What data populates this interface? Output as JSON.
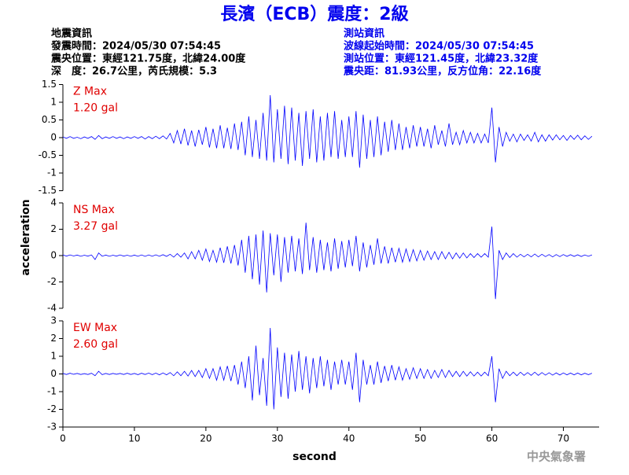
{
  "header": {
    "title": "長濱（ECB）震度：2級",
    "left_lines": [
      "地震資訊",
      "發震時間：2024/05/30 07:54:45",
      "震央位置：東經121.75度，北緯24.00度",
      "深　度：26.7公里，芮氏規模：5.3"
    ],
    "right_lines": [
      "測站資訊",
      "波線起始時間：2024/05/30 07:54:45",
      "測站位置：東經121.45度，北緯23.32度",
      "震央距：81.93公里，反方位角：22.16度"
    ],
    "footer": "中央氣象署"
  },
  "chart_data": [
    {
      "type": "line",
      "annotation": [
        "Z Max",
        "1.20 gal"
      ],
      "color": "#0000ff",
      "annotation_color": "#e00000",
      "xlim": [
        0,
        75
      ],
      "ylim": [
        -1.5,
        1.5
      ],
      "yticks": [
        -1.5,
        -1,
        -0.5,
        0,
        0.5,
        1,
        1.5
      ],
      "x": [
        0,
        0.5,
        1,
        1.5,
        2,
        2.5,
        3,
        3.5,
        4,
        4.5,
        5,
        5.5,
        6,
        6.5,
        7,
        7.5,
        8,
        8.5,
        9,
        9.5,
        10,
        10.5,
        11,
        11.5,
        12,
        12.5,
        13,
        13.5,
        14,
        14.5,
        15,
        15.5,
        16,
        16.5,
        17,
        17.5,
        18,
        18.5,
        19,
        19.5,
        20,
        20.5,
        21,
        21.5,
        22,
        22.5,
        23,
        23.5,
        24,
        24.5,
        25,
        25.5,
        26,
        26.5,
        27,
        27.5,
        28,
        28.5,
        29,
        29.5,
        30,
        30.5,
        31,
        31.5,
        32,
        32.5,
        33,
        33.5,
        34,
        34.5,
        35,
        35.5,
        36,
        36.5,
        37,
        37.5,
        38,
        38.5,
        39,
        39.5,
        40,
        40.5,
        41,
        41.5,
        42,
        42.5,
        43,
        43.5,
        44,
        44.5,
        45,
        45.5,
        46,
        46.5,
        47,
        47.5,
        48,
        48.5,
        49,
        49.5,
        50,
        50.5,
        51,
        51.5,
        52,
        52.5,
        53,
        53.5,
        54,
        54.5,
        55,
        55.5,
        56,
        56.5,
        57,
        57.5,
        58,
        58.5,
        59,
        59.5,
        60,
        60.5,
        61,
        61.5,
        62,
        62.5,
        63,
        63.5,
        64,
        64.5,
        65,
        65.5,
        66,
        66.5,
        67,
        67.5,
        68,
        68.5,
        69,
        69.5,
        70,
        70.5,
        71,
        71.5,
        72,
        72.5,
        73,
        73.5,
        74
      ],
      "values": [
        0.02,
        -0.02,
        0.03,
        -0.02,
        0.01,
        -0.03,
        0.02,
        -0.02,
        0.03,
        -0.05,
        0.06,
        -0.03,
        0.02,
        -0.02,
        0.03,
        -0.02,
        0.02,
        -0.03,
        0.02,
        -0.02,
        0.03,
        -0.02,
        0.03,
        -0.04,
        0.03,
        -0.03,
        0.04,
        -0.03,
        0.05,
        -0.04,
        0.12,
        -0.15,
        0.2,
        -0.18,
        0.25,
        -0.22,
        0.2,
        -0.25,
        0.22,
        -0.2,
        0.3,
        -0.28,
        0.25,
        -0.3,
        0.35,
        -0.3,
        0.28,
        -0.32,
        0.4,
        -0.35,
        0.45,
        -0.5,
        0.6,
        -0.55,
        0.5,
        -0.6,
        0.7,
        -0.65,
        1.2,
        -0.7,
        0.8,
        -0.6,
        0.9,
        -0.75,
        0.85,
        -0.65,
        0.7,
        -0.8,
        0.75,
        -0.6,
        0.8,
        -0.7,
        0.6,
        -0.65,
        0.7,
        -0.55,
        0.75,
        -0.6,
        0.5,
        -0.55,
        0.6,
        -0.55,
        0.75,
        -0.85,
        0.65,
        -0.6,
        0.5,
        -0.55,
        0.6,
        -0.5,
        0.45,
        -0.4,
        0.5,
        -0.35,
        0.4,
        -0.35,
        0.3,
        -0.3,
        0.35,
        -0.25,
        0.3,
        -0.25,
        0.25,
        -0.3,
        0.35,
        -0.2,
        0.2,
        -0.25,
        0.4,
        -0.2,
        0.15,
        -0.2,
        0.2,
        -0.15,
        0.15,
        -0.15,
        0.12,
        -0.15,
        0.1,
        -0.15,
        0.85,
        -0.7,
        0.3,
        -0.25,
        0.15,
        -0.1,
        0.1,
        -0.12,
        0.1,
        -0.08,
        0.08,
        -0.1,
        0.15,
        -0.12,
        0.08,
        -0.1,
        0.08,
        -0.07,
        0.08,
        -0.06,
        0.06,
        -0.08,
        0.06,
        -0.05,
        0.07,
        -0.06,
        0.05,
        -0.05,
        0.04
      ]
    },
    {
      "type": "line",
      "annotation": [
        "NS Max",
        "3.27 gal"
      ],
      "color": "#0000ff",
      "annotation_color": "#e00000",
      "ylabel": "acceleration",
      "xlim": [
        0,
        75
      ],
      "ylim": [
        -4,
        4
      ],
      "yticks": [
        -4,
        -2,
        0,
        2,
        4
      ],
      "x": [
        0,
        0.5,
        1,
        1.5,
        2,
        2.5,
        3,
        3.5,
        4,
        4.5,
        5,
        5.5,
        6,
        6.5,
        7,
        7.5,
        8,
        8.5,
        9,
        9.5,
        10,
        10.5,
        11,
        11.5,
        12,
        12.5,
        13,
        13.5,
        14,
        14.5,
        15,
        15.5,
        16,
        16.5,
        17,
        17.5,
        18,
        18.5,
        19,
        19.5,
        20,
        20.5,
        21,
        21.5,
        22,
        22.5,
        23,
        23.5,
        24,
        24.5,
        25,
        25.5,
        26,
        26.5,
        27,
        27.5,
        28,
        28.5,
        29,
        29.5,
        30,
        30.5,
        31,
        31.5,
        32,
        32.5,
        33,
        33.5,
        34,
        34.5,
        35,
        35.5,
        36,
        36.5,
        37,
        37.5,
        38,
        38.5,
        39,
        39.5,
        40,
        40.5,
        41,
        41.5,
        42,
        42.5,
        43,
        43.5,
        44,
        44.5,
        45,
        45.5,
        46,
        46.5,
        47,
        47.5,
        48,
        48.5,
        49,
        49.5,
        50,
        50.5,
        51,
        51.5,
        52,
        52.5,
        53,
        53.5,
        54,
        54.5,
        55,
        55.5,
        56,
        56.5,
        57,
        57.5,
        58,
        58.5,
        59,
        59.5,
        60,
        60.5,
        61,
        61.5,
        62,
        62.5,
        63,
        63.5,
        64,
        64.5,
        65,
        65.5,
        66,
        66.5,
        67,
        67.5,
        68,
        68.5,
        69,
        69.5,
        70,
        70.5,
        71,
        71.5,
        72,
        72.5,
        73,
        73.5,
        74
      ],
      "values": [
        0.05,
        -0.04,
        0.05,
        -0.03,
        0.04,
        -0.05,
        0.03,
        -0.04,
        0.05,
        -0.3,
        0.2,
        -0.05,
        0.04,
        -0.05,
        0.03,
        -0.04,
        0.05,
        -0.04,
        0.03,
        -0.05,
        0.04,
        -0.05,
        0.05,
        -0.06,
        0.05,
        -0.05,
        0.06,
        -0.05,
        0.07,
        -0.06,
        0.1,
        -0.12,
        0.15,
        -0.12,
        0.2,
        -0.25,
        0.3,
        -0.25,
        0.4,
        -0.35,
        0.5,
        -0.45,
        0.4,
        -0.5,
        0.6,
        -0.55,
        0.7,
        -0.6,
        0.8,
        -0.75,
        1.2,
        -1.3,
        1.5,
        -1.8,
        1.6,
        -2.2,
        1.9,
        -2.8,
        1.7,
        -1.5,
        1.6,
        -2.0,
        1.4,
        -1.3,
        1.5,
        -1.2,
        1.3,
        -1.4,
        2.5,
        -1.1,
        1.4,
        -1.3,
        1.2,
        -1.1,
        1.0,
        -1.2,
        1.3,
        -1.0,
        1.1,
        -0.9,
        1.2,
        -0.8,
        1.5,
        -1.2,
        1.0,
        -0.9,
        0.8,
        -0.7,
        1.3,
        -0.6,
        0.7,
        -0.6,
        0.6,
        -0.5,
        0.55,
        -0.5,
        0.5,
        -0.45,
        0.45,
        -0.4,
        0.4,
        -0.35,
        0.35,
        -0.3,
        0.3,
        -0.3,
        0.3,
        -0.25,
        0.25,
        -0.25,
        0.2,
        -0.2,
        0.2,
        -0.18,
        0.15,
        -0.15,
        0.15,
        -0.12,
        0.15,
        -0.12,
        2.2,
        -3.3,
        0.4,
        -0.3,
        0.2,
        -0.15,
        0.15,
        -0.12,
        0.1,
        -0.1,
        0.1,
        -0.1,
        0.12,
        -0.1,
        0.1,
        -0.08,
        0.08,
        -0.1,
        0.08,
        -0.08,
        0.08,
        -0.06,
        0.07,
        -0.06,
        0.06,
        -0.07,
        0.05,
        -0.05,
        0.05
      ]
    },
    {
      "type": "line",
      "annotation": [
        "EW Max",
        "2.60 gal"
      ],
      "color": "#0000ff",
      "annotation_color": "#e00000",
      "xlabel": "second",
      "xlim": [
        0,
        75
      ],
      "xticks": [
        0,
        10,
        20,
        30,
        40,
        50,
        60,
        70
      ],
      "ylim": [
        -3,
        3
      ],
      "yticks": [
        -3,
        -2,
        -1,
        0,
        1,
        2,
        3
      ],
      "x": [
        0,
        0.5,
        1,
        1.5,
        2,
        2.5,
        3,
        3.5,
        4,
        4.5,
        5,
        5.5,
        6,
        6.5,
        7,
        7.5,
        8,
        8.5,
        9,
        9.5,
        10,
        10.5,
        11,
        11.5,
        12,
        12.5,
        13,
        13.5,
        14,
        14.5,
        15,
        15.5,
        16,
        16.5,
        17,
        17.5,
        18,
        18.5,
        19,
        19.5,
        20,
        20.5,
        21,
        21.5,
        22,
        22.5,
        23,
        23.5,
        24,
        24.5,
        25,
        25.5,
        26,
        26.5,
        27,
        27.5,
        28,
        28.5,
        29,
        29.5,
        30,
        30.5,
        31,
        31.5,
        32,
        32.5,
        33,
        33.5,
        34,
        34.5,
        35,
        35.5,
        36,
        36.5,
        37,
        37.5,
        38,
        38.5,
        39,
        39.5,
        40,
        40.5,
        41,
        41.5,
        42,
        42.5,
        43,
        43.5,
        44,
        44.5,
        45,
        45.5,
        46,
        46.5,
        47,
        47.5,
        48,
        48.5,
        49,
        49.5,
        50,
        50.5,
        51,
        51.5,
        52,
        52.5,
        53,
        53.5,
        54,
        54.5,
        55,
        55.5,
        56,
        56.5,
        57,
        57.5,
        58,
        58.5,
        59,
        59.5,
        60,
        60.5,
        61,
        61.5,
        62,
        62.5,
        63,
        63.5,
        64,
        64.5,
        65,
        65.5,
        66,
        66.5,
        67,
        67.5,
        68,
        68.5,
        69,
        69.5,
        70,
        70.5,
        71,
        71.5,
        72,
        72.5,
        73,
        73.5,
        74
      ],
      "values": [
        0.03,
        -0.03,
        0.04,
        -0.02,
        0.03,
        -0.03,
        0.02,
        -0.03,
        0.04,
        -0.1,
        0.15,
        -0.04,
        0.03,
        -0.03,
        0.03,
        -0.02,
        0.03,
        -0.03,
        0.04,
        -0.03,
        0.03,
        -0.04,
        0.04,
        -0.03,
        0.05,
        -0.04,
        0.05,
        -0.05,
        0.06,
        -0.05,
        0.08,
        -0.1,
        0.12,
        -0.1,
        0.15,
        -0.12,
        0.2,
        -0.15,
        0.2,
        -0.2,
        0.3,
        -0.25,
        0.3,
        -0.35,
        0.4,
        -0.35,
        0.45,
        -0.4,
        0.5,
        -0.6,
        0.7,
        -0.8,
        1.0,
        -1.5,
        1.6,
        -1.2,
        0.9,
        -1.8,
        2.6,
        -2.0,
        1.5,
        -1.3,
        1.2,
        -1.4,
        1.1,
        -1.0,
        1.3,
        -0.9,
        1.0,
        -1.1,
        0.9,
        -0.8,
        1.0,
        -0.7,
        0.8,
        -0.9,
        0.7,
        -0.6,
        0.8,
        -0.6,
        0.7,
        -0.9,
        1.2,
        -1.6,
        0.8,
        -0.6,
        0.5,
        -0.6,
        0.7,
        -0.5,
        0.45,
        -0.4,
        0.5,
        -0.35,
        0.4,
        -0.35,
        0.3,
        -0.3,
        0.35,
        -0.25,
        0.3,
        -0.25,
        0.25,
        -0.25,
        0.2,
        -0.2,
        0.25,
        -0.2,
        0.2,
        -0.15,
        0.15,
        -0.15,
        0.15,
        -0.12,
        0.12,
        -0.12,
        0.1,
        -0.12,
        0.1,
        -0.1,
        1.0,
        -1.6,
        0.3,
        -0.25,
        0.15,
        -0.1,
        0.1,
        -0.1,
        0.1,
        -0.08,
        0.08,
        -0.08,
        0.1,
        -0.08,
        0.08,
        -0.07,
        0.07,
        -0.07,
        0.06,
        -0.06,
        0.06,
        -0.05,
        0.05,
        -0.05,
        0.05,
        -0.05,
        0.04,
        -0.04,
        0.04
      ]
    }
  ]
}
